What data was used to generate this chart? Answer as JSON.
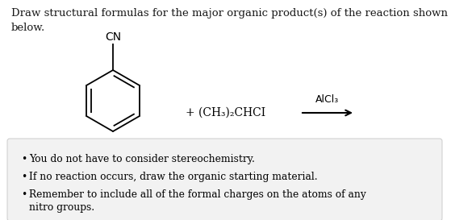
{
  "title_text": "Draw structural formulas for the major organic product(s) of the reaction shown\nbelow.",
  "title_fontsize": 9.5,
  "title_color": "#1a1a1a",
  "bg_color": "#ffffff",
  "box_bg_color": "#f2f2f2",
  "box_edge_color": "#cccccc",
  "bullet_points": [
    "You do not have to consider stereochemistry.",
    "If no reaction occurs, draw the organic starting material.",
    "Remember to include all of the formal charges on the atoms of any\nnitro groups."
  ],
  "bullet_fontsize": 8.8,
  "cn_label": "CN",
  "reagent_text": "+ (CH₃)₂CHCI",
  "catalyst_text": "AlCl₃",
  "line_color": "#000000",
  "line_width": 1.3,
  "fig_width": 5.59,
  "fig_height": 2.73,
  "dpi": 100
}
